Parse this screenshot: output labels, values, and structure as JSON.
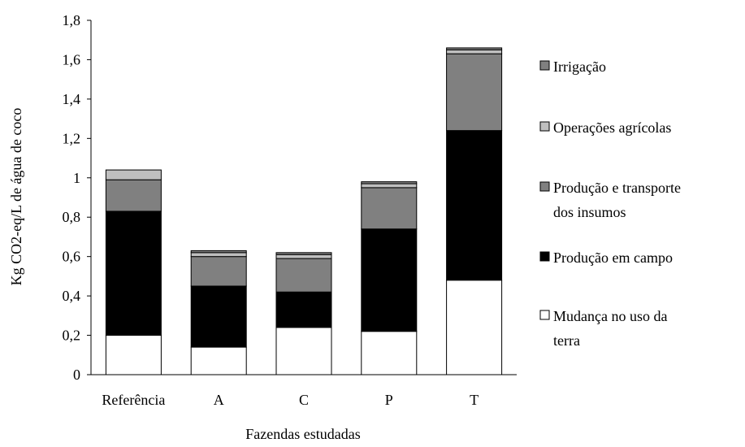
{
  "chart_data": {
    "type": "bar",
    "stacked": true,
    "xlabel": "Fazendas estudadas",
    "ylabel": "Kg CO2-eq/L de água de coco",
    "ylim": [
      0,
      1.8
    ],
    "yticks": [
      "0",
      "0,2",
      "0,4",
      "0,6",
      "0,8",
      "1",
      "1,2",
      "1,4",
      "1,6",
      "1,8"
    ],
    "categories": [
      "Referência",
      "A",
      "C",
      "P",
      "T"
    ],
    "grid": false,
    "legend_position": "right",
    "series": [
      {
        "name": "Mudança no uso da terra",
        "legend_lines": [
          "Mudança no uso da",
          "terra"
        ],
        "color": "#ffffff",
        "values": [
          0.2,
          0.14,
          0.24,
          0.22,
          0.48
        ]
      },
      {
        "name": "Produção em campo",
        "legend_lines": [
          "Produção em campo"
        ],
        "color": "#000000",
        "values": [
          0.63,
          0.31,
          0.18,
          0.52,
          0.76
        ]
      },
      {
        "name": "Produção e transporte dos insumos",
        "legend_lines": [
          "Produção e transporte",
          "dos insumos"
        ],
        "color": "#808080",
        "values": [
          0.16,
          0.15,
          0.17,
          0.21,
          0.39
        ]
      },
      {
        "name": "Operações agrícolas",
        "legend_lines": [
          "Operações agrícolas"
        ],
        "color": "#bfbfbf",
        "values": [
          0.05,
          0.02,
          0.02,
          0.02,
          0.02
        ]
      },
      {
        "name": "Irrigação",
        "legend_lines": [
          "Irrigação"
        ],
        "color": "#808080",
        "values": [
          0.0,
          0.01,
          0.01,
          0.01,
          0.01
        ]
      }
    ]
  }
}
